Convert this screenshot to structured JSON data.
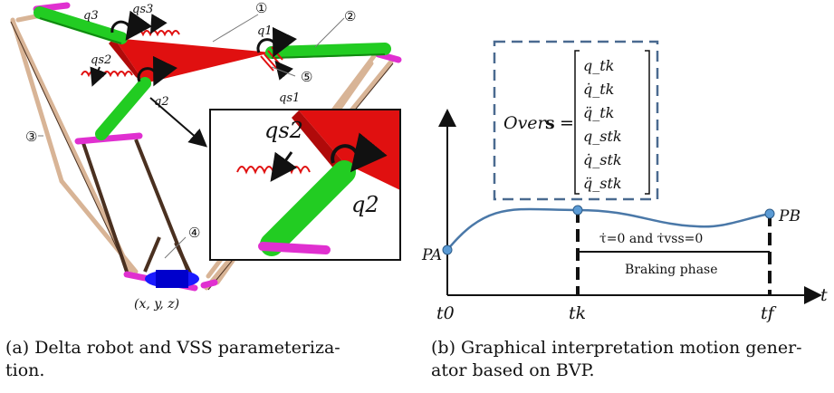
{
  "left_panel": {
    "labels": {
      "q3": "q3",
      "qs3": "qs3",
      "q1": "q1",
      "qs2": "qs2",
      "q2": "q2",
      "qs1": "qs1",
      "n1": "①",
      "n2": "②",
      "n3": "③",
      "n4": "④",
      "n5": "⑤",
      "xyz": "(x, y, z)"
    },
    "inset": {
      "qs2": "qs2",
      "q2": "q2"
    },
    "caption": "(a) Delta robot and VSS parameteriza-\ntion."
  },
  "right_panel": {
    "box_over": "Over",
    "box_s": "s",
    "box_eq": "=",
    "vector": [
      "q_tk",
      "q̇_tk",
      "q̈_tk",
      "q_stk",
      "q̇_stk",
      "q̈_stk"
    ],
    "pa": "PA",
    "pb": "PB",
    "t0": "t0",
    "tk": "tk",
    "tf": "tf",
    "taxis": "t",
    "condition": "τ̇=0 and τ̇vss=0",
    "braking": "Braking phase",
    "caption": "(b) Graphical interpretation motion gener-\nator based on BVP."
  },
  "colors": {
    "green": "#22cc22",
    "red": "#e01010",
    "magenta": "#e030d0",
    "tan": "#d8b496",
    "brown": "#4a3020",
    "blue_robot": "#1a1aff",
    "curve": "#4a78a8",
    "box": "#4a6a90"
  }
}
